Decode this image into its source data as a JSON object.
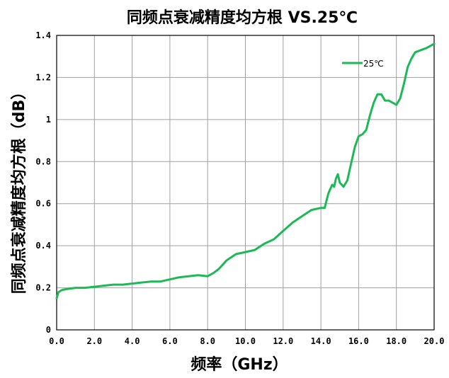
{
  "chart_data": {
    "type": "line",
    "title": "同频点衰减精度均方根 VS.25℃",
    "xlabel": "频率（GHz）",
    "ylabel": "同频点衰减精度均方根（dB）",
    "xlim": [
      0,
      20
    ],
    "ylim": [
      0,
      1.4
    ],
    "x_ticks": [
      0,
      2,
      4,
      6,
      8,
      10,
      12,
      14,
      16,
      18,
      20
    ],
    "x_tick_labels": [
      "0.0",
      "2.0",
      "4.0",
      "6.0",
      "8.0",
      "10.0",
      "12.0",
      "14.0",
      "16.0",
      "18.0",
      "20.0"
    ],
    "y_ticks": [
      0,
      0.2,
      0.4,
      0.6,
      0.8,
      1,
      1.2,
      1.4
    ],
    "y_tick_labels": [
      "0",
      "0.2",
      "0.4",
      "0.6",
      "0.8",
      "1",
      "1.2",
      "1.4"
    ],
    "grid": true,
    "legend_position": "top-right",
    "series": [
      {
        "name": "25℃",
        "color": "#1db954",
        "x": [
          0,
          0.1,
          0.3,
          0.6,
          1.0,
          1.5,
          2.0,
          2.5,
          3.0,
          3.5,
          4.0,
          4.5,
          5.0,
          5.5,
          6.0,
          6.5,
          7.0,
          7.5,
          8.0,
          8.3,
          8.6,
          9.0,
          9.5,
          10.0,
          10.5,
          11.0,
          11.5,
          12.0,
          12.5,
          13.0,
          13.5,
          14.0,
          14.2,
          14.4,
          14.6,
          14.7,
          14.8,
          14.9,
          15.0,
          15.2,
          15.4,
          15.6,
          15.8,
          16.0,
          16.2,
          16.4,
          16.6,
          16.8,
          17.0,
          17.2,
          17.4,
          17.6,
          17.8,
          18.0,
          18.2,
          18.4,
          18.6,
          18.8,
          19.0,
          19.3,
          19.6,
          20.0
        ],
        "y": [
          0.15,
          0.18,
          0.19,
          0.195,
          0.2,
          0.2,
          0.205,
          0.21,
          0.215,
          0.215,
          0.22,
          0.225,
          0.23,
          0.23,
          0.24,
          0.25,
          0.255,
          0.26,
          0.255,
          0.27,
          0.29,
          0.33,
          0.36,
          0.37,
          0.38,
          0.41,
          0.43,
          0.47,
          0.51,
          0.54,
          0.57,
          0.58,
          0.58,
          0.65,
          0.69,
          0.68,
          0.72,
          0.74,
          0.7,
          0.68,
          0.71,
          0.79,
          0.87,
          0.92,
          0.93,
          0.95,
          1.02,
          1.08,
          1.12,
          1.12,
          1.09,
          1.09,
          1.08,
          1.07,
          1.1,
          1.17,
          1.25,
          1.29,
          1.32,
          1.33,
          1.34,
          1.36
        ]
      }
    ]
  }
}
